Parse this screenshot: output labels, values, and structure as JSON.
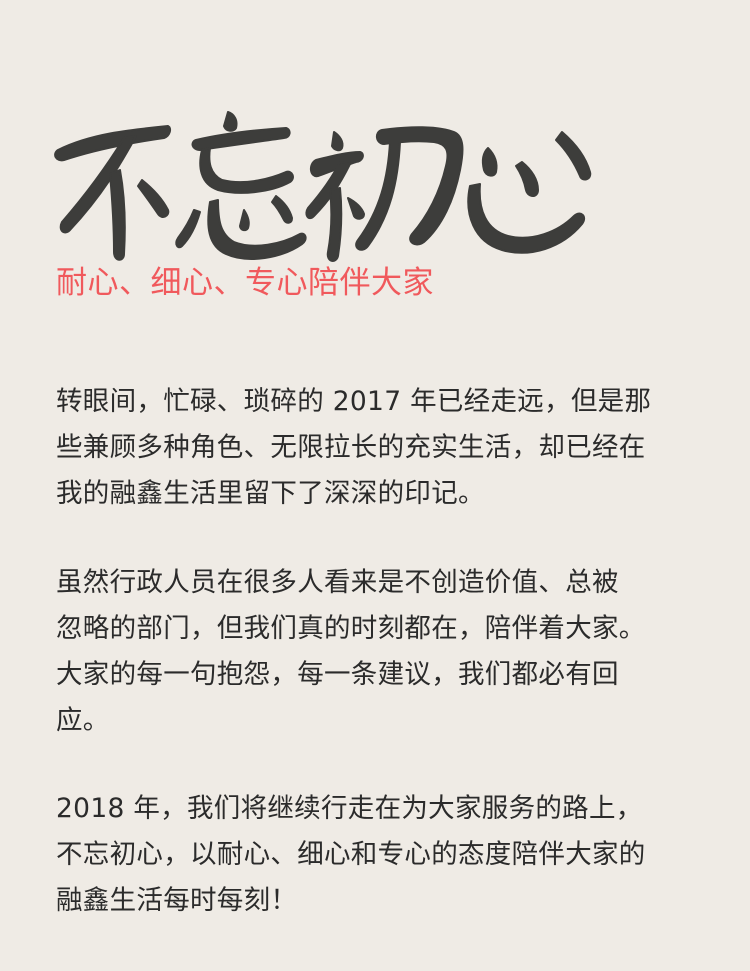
{
  "title": {
    "text": "不忘初心"
  },
  "subtitle": "耐心、细心、专心陪伴大家",
  "paragraphs": [
    {
      "lines": [
        "转眼间，忙碌、琐碎的 2017 年已经走远，但是那",
        "些兼顾多种角色、无限拉长的充实生活，却已经在",
        "我的融鑫生活里留下了深深的印记。"
      ]
    },
    {
      "lines": [
        "虽然行政人员在很多人看来是不创造价值、总被",
        "忽略的部门，但我们真的时刻都在，陪伴着大家。",
        "大家的每一句抱怨，每一条建议，我们都必有回",
        "应。"
      ]
    },
    {
      "lines": [
        "2018 年，我们将继续行走在为大家服务的路上，",
        "不忘初心，以耐心、细心和专心的态度陪伴大家的",
        "融鑫生活每时每刻！"
      ]
    }
  ],
  "colors": {
    "background": "#efebe5",
    "accent": "#f0595c",
    "ink": "#3d3d3b",
    "body_text": "#2b2b2b"
  }
}
